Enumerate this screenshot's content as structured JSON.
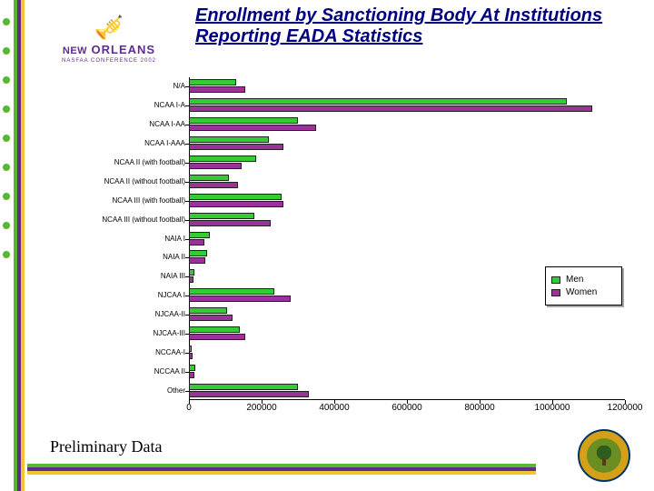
{
  "title": "Enrollment by Sanctioning Body At Institutions Reporting EADA Statistics",
  "footer": "Preliminary Data",
  "logo": {
    "line1": "NEW",
    "line2": "ORLEANS",
    "line3": "NASFAA CONFERENCE 2002"
  },
  "legend": {
    "men": "Men",
    "women": "Women"
  },
  "chart": {
    "type": "bar",
    "orientation": "horizontal",
    "grouped": true,
    "men_color": "#33cc33",
    "women_color": "#993399",
    "background_color": "#ffffff",
    "axis_color": "#000000",
    "label_fontsize": 8,
    "tick_fontsize": 10,
    "xlim": [
      0,
      1200000
    ],
    "xtick_step": 200000,
    "xticks": [
      0,
      200000,
      400000,
      600000,
      800000,
      1000000,
      1200000
    ],
    "categories": [
      "N/A",
      "NCAA I-A",
      "NCAA I-AA",
      "NCAA I-AAA",
      "NCAA II (with football)",
      "NCAA II (without football)",
      "NCAA III (with football)",
      "NCAA III (without football)",
      "NAIA I",
      "NAIA II",
      "NAIA III",
      "NJCAA I",
      "NJCAA-II",
      "NJCAA-III",
      "NCCAA-I",
      "NCCAA II",
      "Other"
    ],
    "men": [
      130000,
      1040000,
      300000,
      220000,
      185000,
      110000,
      255000,
      180000,
      58000,
      50000,
      15000,
      235000,
      105000,
      140000,
      7000,
      18000,
      300000
    ],
    "women": [
      155000,
      1110000,
      350000,
      260000,
      145000,
      135000,
      260000,
      225000,
      42000,
      45000,
      12000,
      280000,
      120000,
      155000,
      9000,
      16000,
      330000
    ]
  }
}
